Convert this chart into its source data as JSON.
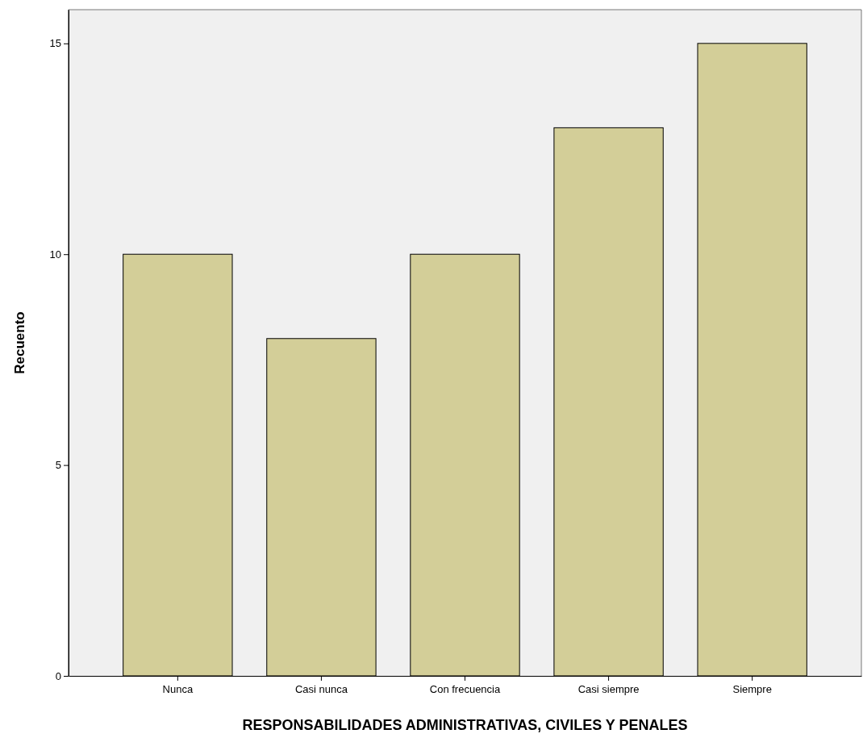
{
  "chart_data": {
    "type": "bar",
    "xlabel": "RESPONSABILIDADES ADMINISTRATIVAS, CIVILES Y PENALES",
    "ylabel": "Recuento",
    "categories": [
      "Nunca",
      "Casi nunca",
      "Con frecuencia",
      "Casi siempre",
      "Siempre"
    ],
    "values": [
      10,
      8,
      10,
      13,
      15
    ],
    "color": "#d3ce98",
    "ylim": [
      0,
      15.8
    ],
    "yticks": [
      0,
      5,
      10,
      15
    ],
    "grid": false
  }
}
